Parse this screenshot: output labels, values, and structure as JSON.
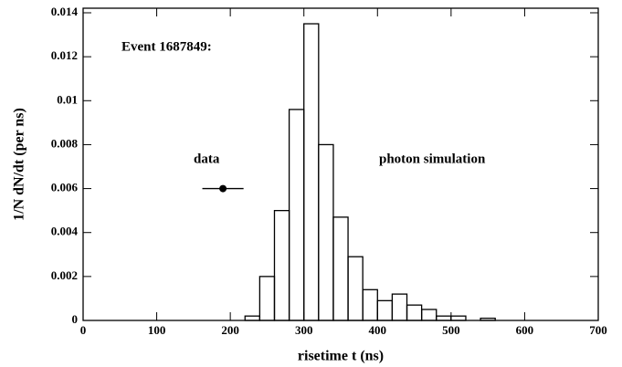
{
  "chart_data": {
    "type": "histogram",
    "title": "Event 1687849:",
    "x_label": "risetime t (ns)",
    "y_label": "1/N dN/dt (per ns)",
    "series": [
      {
        "name": "photon simulation",
        "color": "#000000",
        "bins": [
          220,
          240,
          260,
          280,
          300,
          320,
          340,
          360,
          380,
          400,
          420,
          440,
          460,
          480,
          500,
          520,
          540,
          560
        ],
        "values": [
          0.0002,
          0.002,
          0.005,
          0.0096,
          0.0135,
          0.008,
          0.0047,
          0.0029,
          0.0014,
          0.0009,
          0.0012,
          0.0007,
          0.0005,
          0.0002,
          0.0002,
          0,
          0.0001
        ]
      }
    ],
    "points": [
      {
        "name": "data",
        "color": "#000000",
        "x": 190,
        "y": 0.006,
        "xerr": 28
      }
    ],
    "xlim": [
      0,
      700
    ],
    "xticks": [
      0,
      100,
      200,
      300,
      400,
      500,
      600,
      700
    ],
    "ylim": [
      0,
      0.014
    ],
    "yticks": [
      0,
      0.002,
      0.004,
      0.006,
      0.008,
      0.01,
      0.012,
      0.014
    ]
  }
}
